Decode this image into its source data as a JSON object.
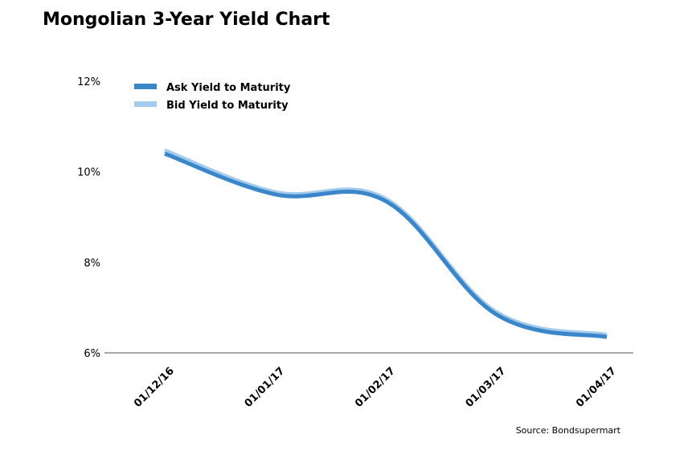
{
  "title": "Mongolian 3-Year Yield Chart",
  "source": "Source: Bondsupermart",
  "chart_data": {
    "type": "line",
    "title": "Mongolian 3-Year Yield Chart",
    "xlabel": "",
    "ylabel": "",
    "x": [
      "01/12/16",
      "01/01/17",
      "01/02/17",
      "01/03/17",
      "01/04/17"
    ],
    "y_ticks": [
      "6%",
      "8%",
      "10%",
      "12%"
    ],
    "ylim": [
      6,
      12
    ],
    "grid": false,
    "legend_position": "top-left",
    "series": [
      {
        "name": "Ask Yield to Maturity",
        "color": "#3a86c8",
        "values": [
          10.4,
          9.5,
          9.35,
          6.85,
          6.35
        ]
      },
      {
        "name": "Bid Yield to Maturity",
        "color": "#a3cbee",
        "values": [
          10.47,
          9.55,
          9.4,
          6.9,
          6.4
        ]
      }
    ]
  }
}
